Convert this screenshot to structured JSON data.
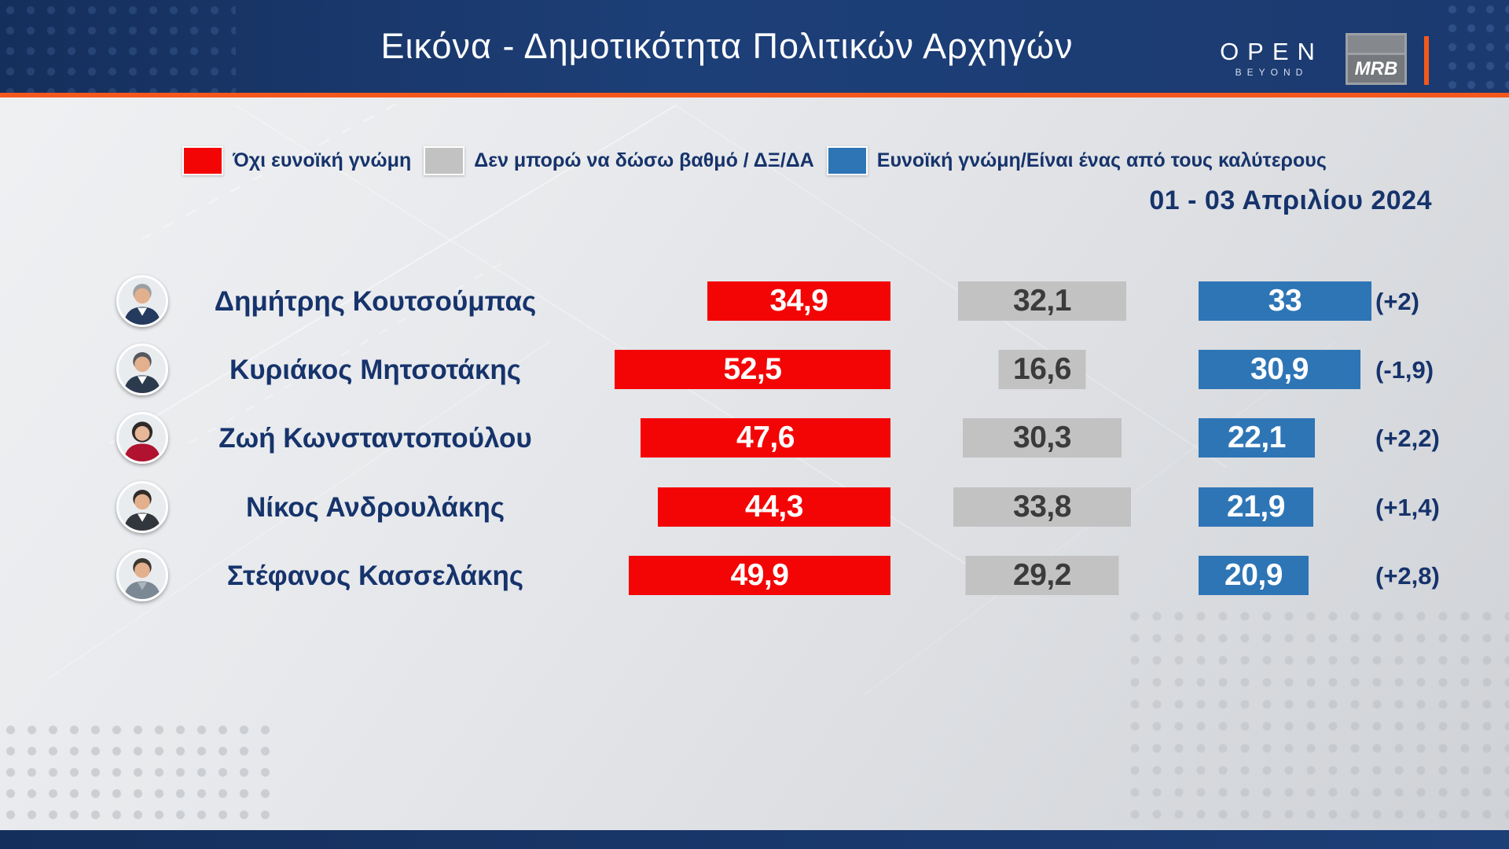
{
  "header": {
    "title": "Εικόνα - Δημοτικότητα Πολιτικών Αρχηγών",
    "open_logo": {
      "text": "OPEN",
      "subtext": "BEYOND"
    },
    "mrb_logo": "MRB"
  },
  "legend": {
    "items": [
      {
        "label": "Όχι ευνοϊκή γνώμη",
        "color": "#f40505"
      },
      {
        "label": "Δεν μπορώ να δώσω βαθμό / ΔΞ/ΔΑ",
        "color": "#c2c2c2"
      },
      {
        "label": "Ευνοϊκή γνώμη/Είναι ένας από τους καλύτερους",
        "color": "#2e75b6"
      }
    ]
  },
  "date_range": "01 - 03 Απριλίου 2024",
  "colors": {
    "header_navy": "#1b3a70",
    "accent_orange": "#f4581c",
    "text_navy": "#16336b",
    "bar_red": "#f40505",
    "bar_gray": "#c2c2c2",
    "bar_blue": "#2e75b6"
  },
  "chart_data": {
    "type": "bar",
    "title": "Εικόνα - Δημοτικότητα Πολιτικών Αρχηγών",
    "subtitle": "01 - 03 Απριλίου 2024",
    "categories": [
      "Δημήτρης Κουτσούμπας",
      "Κυριάκος Μητσοτάκης",
      "Ζωή Κωνσταντοπούλου",
      "Νίκος Ανδρουλάκης",
      "Στέφανος Κασσελάκης"
    ],
    "series": [
      {
        "name": "Όχι ευνοϊκή γνώμη",
        "color": "#f40505",
        "values": [
          34.9,
          52.5,
          47.6,
          44.3,
          49.9
        ]
      },
      {
        "name": "Δεν μπορώ να δώσω βαθμό / ΔΞ/ΔΑ",
        "color": "#c2c2c2",
        "values": [
          32.1,
          16.6,
          30.3,
          33.8,
          29.2
        ]
      },
      {
        "name": "Ευνοϊκή γνώμη/Είναι ένας από τους καλύτερους",
        "color": "#2e75b6",
        "values": [
          33,
          30.9,
          22.1,
          21.9,
          20.9
        ]
      }
    ],
    "annotations": [
      "(+2)",
      "(-1,9)",
      "(+2,2)",
      "(+1,4)",
      "(+2,8)"
    ],
    "orientation": "horizontal",
    "legend_position": "top",
    "grid": false
  },
  "rows": [
    {
      "name": "Δημήτρης Κουτσούμπας",
      "unfavorable": "34,9",
      "neutral": "32,1",
      "favorable": "33",
      "delta": "(+2)",
      "avatar": {
        "hair": "#9aa0a4",
        "skin": "#e3b08e",
        "clothes": "#243a5e",
        "shirt": "#ffffff"
      }
    },
    {
      "name": "Κυριάκος Μητσοτάκης",
      "unfavorable": "52,5",
      "neutral": "16,6",
      "favorable": "30,9",
      "delta": "(-1,9)",
      "avatar": {
        "hair": "#55595e",
        "skin": "#e3b08e",
        "clothes": "#2b3a4d",
        "shirt": "#ffffff"
      }
    },
    {
      "name": "Ζωή Κωνσταντοπούλου",
      "unfavorable": "47,6",
      "neutral": "30,3",
      "favorable": "22,1",
      "delta": "(+2,2)",
      "avatar": {
        "hair": "#2e2a28",
        "skin": "#e8b698",
        "clothes": "#b01230",
        "shirt": "#b01230"
      }
    },
    {
      "name": "Νίκος Ανδρουλάκης",
      "unfavorable": "44,3",
      "neutral": "33,8",
      "favorable": "21,9",
      "delta": "(+1,4)",
      "avatar": {
        "hair": "#2f2b28",
        "skin": "#e3b08e",
        "clothes": "#32373d",
        "shirt": "#ffffff"
      }
    },
    {
      "name": "Στέφανος Κασσελάκης",
      "unfavorable": "49,9",
      "neutral": "29,2",
      "favorable": "20,9",
      "delta": "(+2,8)",
      "avatar": {
        "hair": "#3c3630",
        "skin": "#e3b08e",
        "clothes": "#7c8894",
        "shirt": "#aab4bd"
      }
    }
  ]
}
